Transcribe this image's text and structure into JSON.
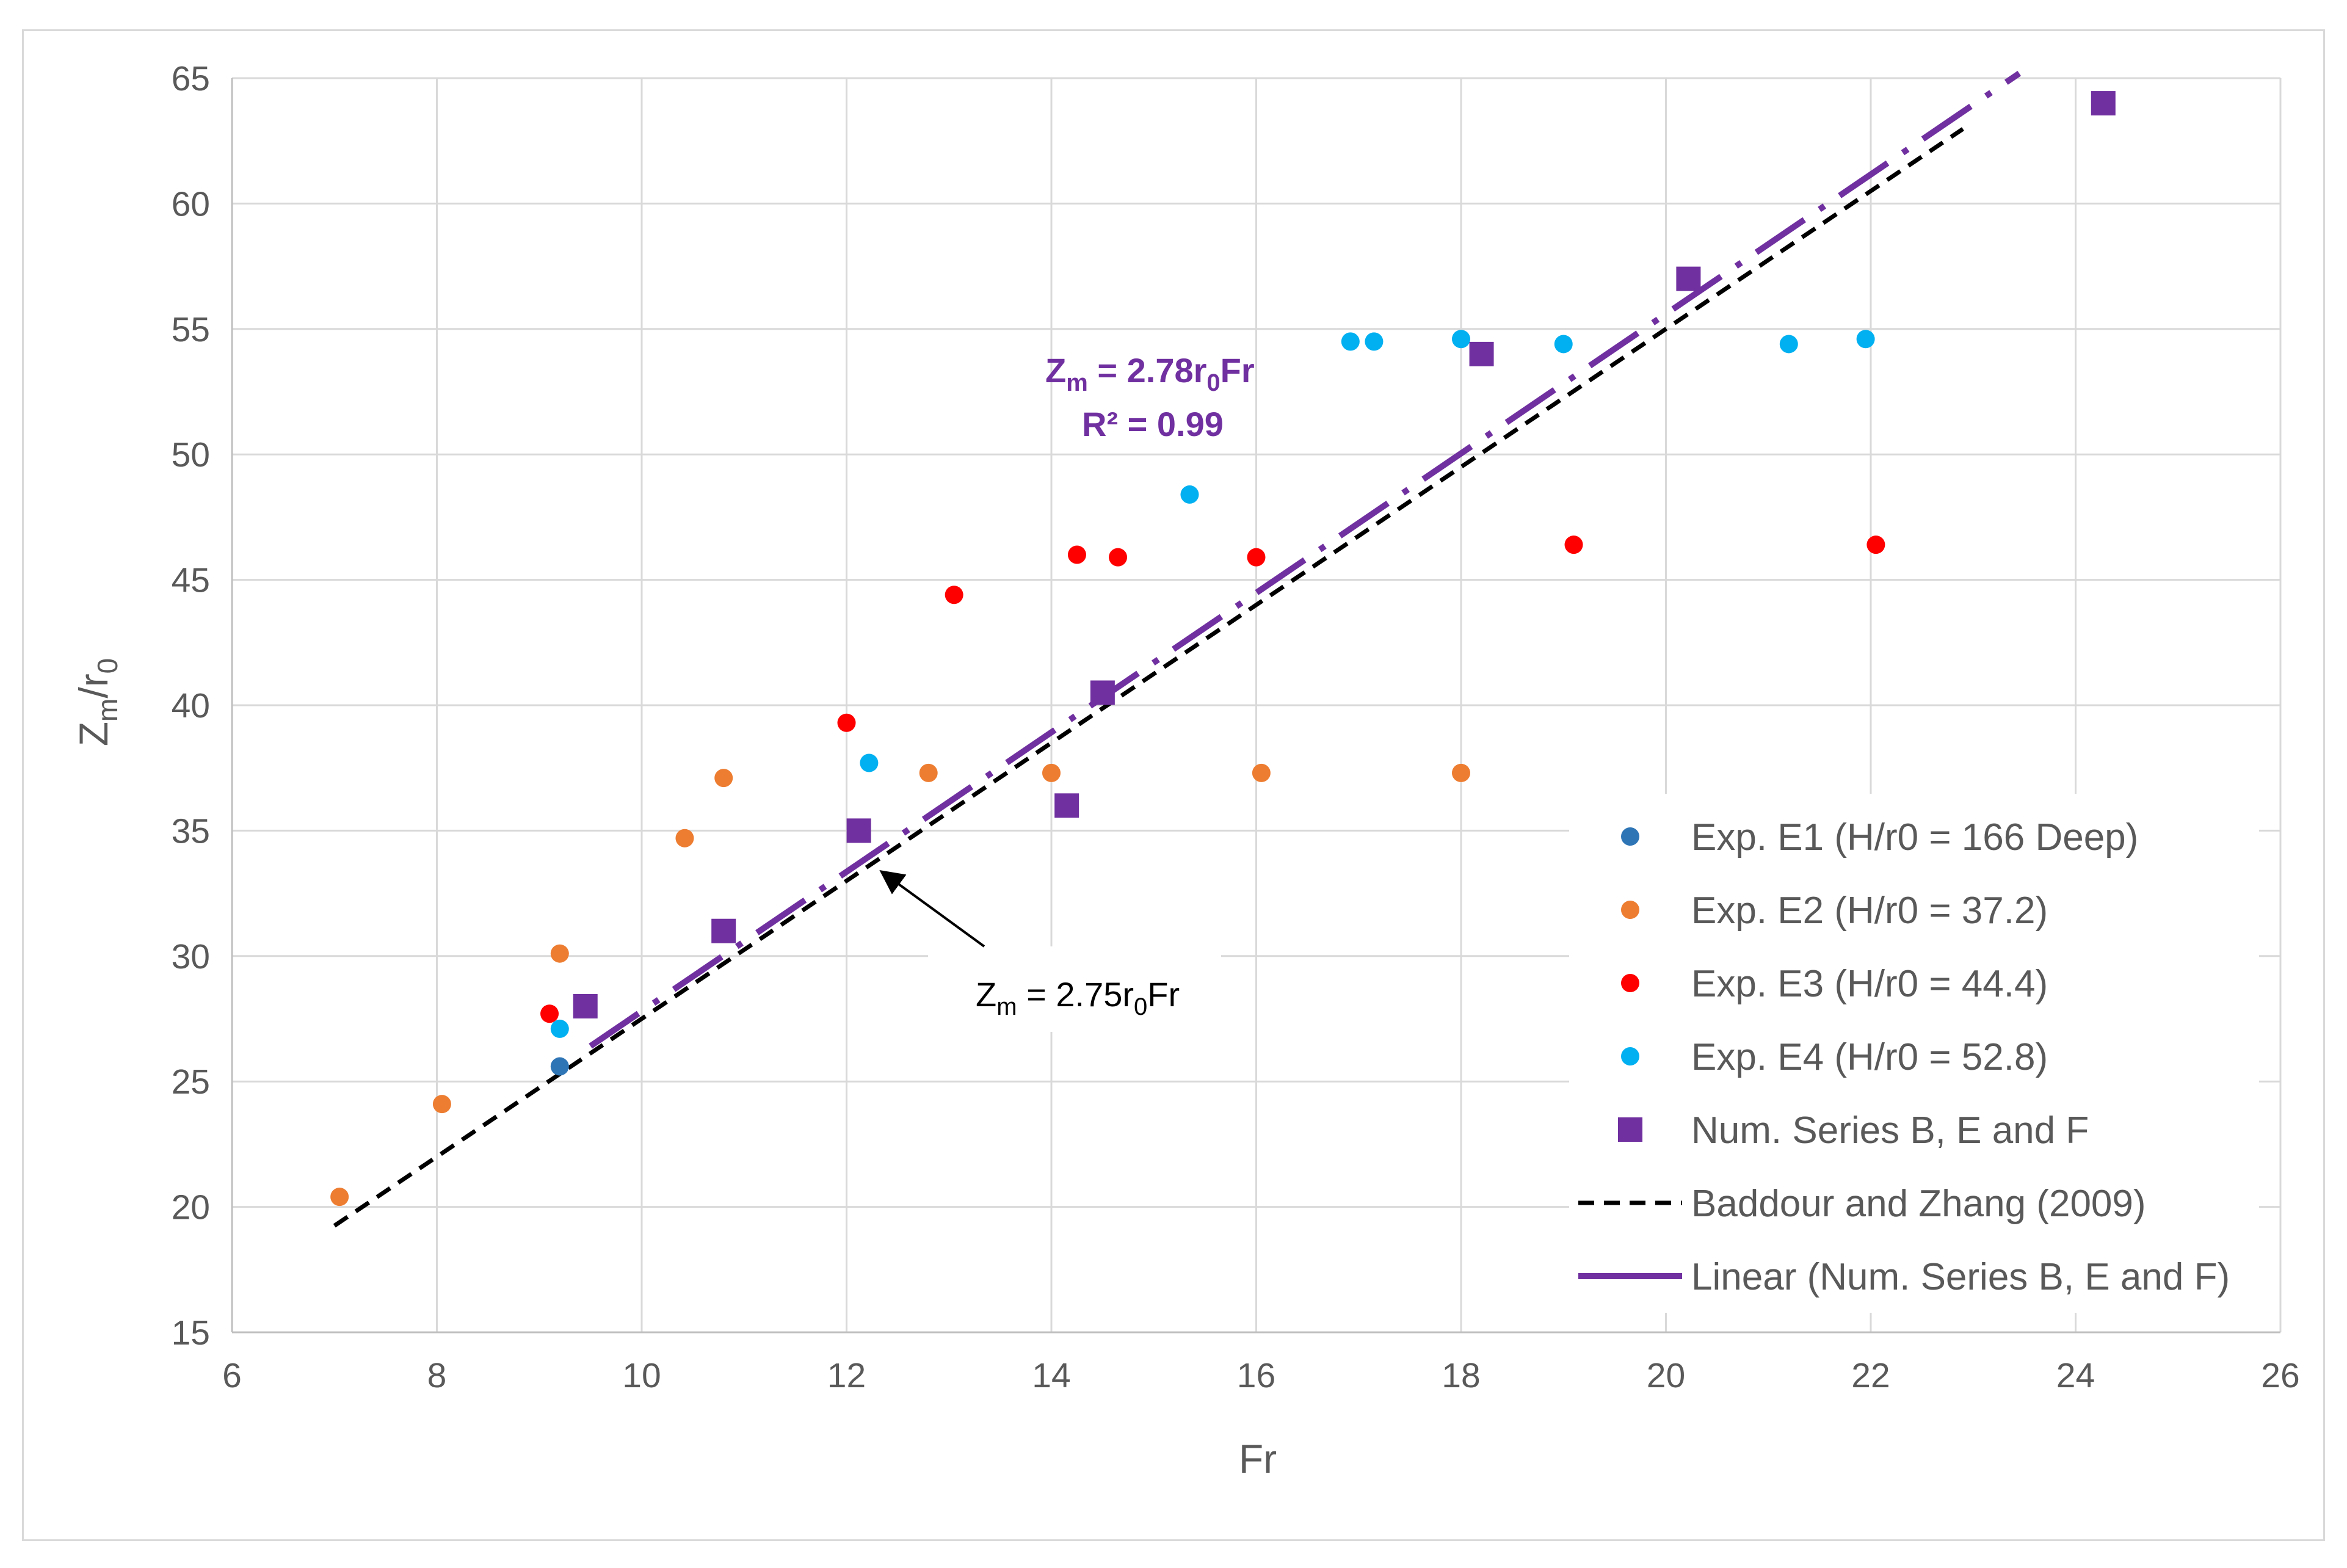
{
  "chart_data": {
    "type": "scatter",
    "title": "",
    "xlabel": "Fr",
    "ylabel_main": "Z",
    "ylabel_sub1": "m",
    "ylabel_mid": "/r",
    "ylabel_sub2": "0",
    "xlim": [
      6,
      26
    ],
    "ylim": [
      15,
      65
    ],
    "xticks": [
      6,
      8,
      10,
      12,
      14,
      16,
      18,
      20,
      22,
      24,
      26
    ],
    "yticks": [
      15,
      20,
      25,
      30,
      35,
      40,
      45,
      50,
      55,
      60,
      65
    ],
    "grid": true,
    "legend_position": "bottom-right",
    "series": [
      {
        "name": "Exp. E1 (H/r0 = 166 Deep)",
        "marker": "circle",
        "color": "#2e75b6",
        "points": [
          [
            9.2,
            25.6
          ]
        ]
      },
      {
        "name": "Exp. E2 (H/r0 = 37.2)",
        "marker": "circle",
        "color": "#ed7d31",
        "points": [
          [
            7.05,
            20.4
          ],
          [
            8.05,
            24.1
          ],
          [
            9.2,
            30.1
          ],
          [
            10.42,
            34.7
          ],
          [
            10.8,
            37.1
          ],
          [
            12.8,
            37.3
          ],
          [
            14.0,
            37.3
          ],
          [
            16.05,
            37.3
          ],
          [
            18.0,
            37.3
          ]
        ]
      },
      {
        "name": "Exp. E3 (H/r0 = 44.4)",
        "marker": "circle",
        "color": "#ff0000",
        "points": [
          [
            9.1,
            27.7
          ],
          [
            12.0,
            39.3
          ],
          [
            13.05,
            44.4
          ],
          [
            14.25,
            46.0
          ],
          [
            14.65,
            45.9
          ],
          [
            16.0,
            45.9
          ],
          [
            19.1,
            46.4
          ],
          [
            22.05,
            46.4
          ]
        ]
      },
      {
        "name": "Exp. E4 (H/r0 = 52.8)",
        "marker": "circle",
        "color": "#00b0f0",
        "points": [
          [
            9.2,
            27.1
          ],
          [
            12.22,
            37.7
          ],
          [
            15.35,
            48.4
          ],
          [
            16.92,
            54.5
          ],
          [
            17.15,
            54.5
          ],
          [
            18.0,
            54.6
          ],
          [
            19.0,
            54.4
          ],
          [
            21.2,
            54.4
          ],
          [
            21.95,
            54.6
          ]
        ]
      },
      {
        "name": "Num. Series B, E and F",
        "marker": "square",
        "color": "#7030a0",
        "points": [
          [
            9.45,
            28.0
          ],
          [
            10.8,
            31.0
          ],
          [
            12.12,
            35.0
          ],
          [
            14.15,
            36.0
          ],
          [
            14.5,
            40.5
          ],
          [
            18.2,
            54.0
          ],
          [
            20.22,
            57.0
          ],
          [
            24.27,
            64.0
          ]
        ]
      }
    ],
    "lines": [
      {
        "name": "Baddour and Zhang (2009)",
        "style": "dashed",
        "color": "#000000",
        "slope": 2.75,
        "x": [
          7.0,
          22.9
        ]
      },
      {
        "name": "Linear (Num. Series B, E and F)",
        "style": "long-dash-dot",
        "color": "#7030a0",
        "slope": 2.78,
        "x": [
          9.5,
          23.45
        ]
      }
    ],
    "annotations": {
      "fit_prefix": "Z",
      "fit_prefix_sub": "m",
      "fit_mid": " = 2.78r",
      "fit_mid_sub": "0",
      "fit_suffix": "Fr",
      "fit_r2": "R² = 0.99",
      "ref_prefix": "Z",
      "ref_prefix_sub": "m",
      "ref_mid": " = 2.75r",
      "ref_mid_sub": "0",
      "ref_suffix": "Fr",
      "ref_arrow_target": [
        12.3,
        33.8
      ]
    }
  }
}
